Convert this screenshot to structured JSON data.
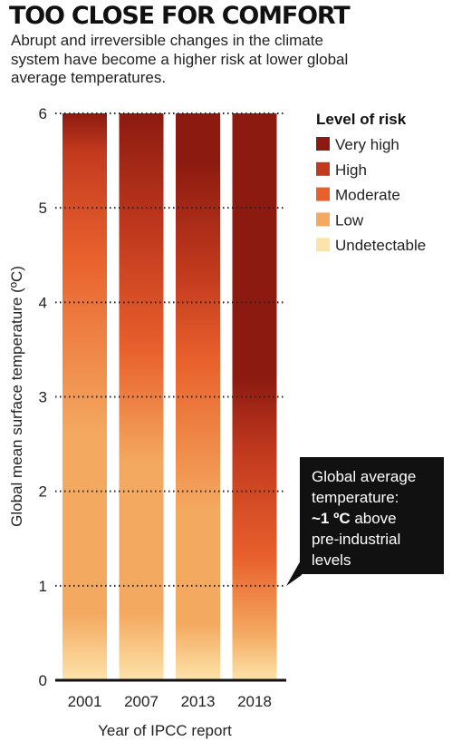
{
  "title": "TOO CLOSE FOR COMFORT",
  "subtitle": "Abrupt and irreversible changes in the climate system have become a higher risk at lower global average temperatures.",
  "colors": {
    "very_high": "#8c1a10",
    "high": "#c23a1e",
    "moderate": "#e8602c",
    "low": "#f4a960",
    "undetectable": "#fde3aa",
    "callout_bg": "#111111"
  },
  "chart_data": {
    "type": "bar",
    "title": "TOO CLOSE FOR COMFORT",
    "xlabel": "Year of IPCC report",
    "ylabel": "Global mean surface temperature (ºC)",
    "ylim": [
      0,
      6
    ],
    "yticks": [
      "0",
      "1",
      "2",
      "3",
      "4",
      "5",
      "6"
    ],
    "categories": [
      "2001",
      "2007",
      "2013",
      "2018"
    ],
    "risk_profiles": [
      {
        "year": "2001",
        "stops": [
          {
            "t": 0,
            "level": "undetectable"
          },
          {
            "t": 0.7,
            "level": "low"
          },
          {
            "t": 2.6,
            "level": "low"
          },
          {
            "t": 4.5,
            "level": "moderate"
          },
          {
            "t": 5.6,
            "level": "high"
          },
          {
            "t": 6,
            "level": "very_high"
          }
        ]
      },
      {
        "year": "2007",
        "stops": [
          {
            "t": 0,
            "level": "undetectable"
          },
          {
            "t": 0.7,
            "level": "low"
          },
          {
            "t": 2.3,
            "level": "low"
          },
          {
            "t": 3.5,
            "level": "moderate"
          },
          {
            "t": 4.7,
            "level": "high"
          },
          {
            "t": 6,
            "level": "very_high"
          }
        ]
      },
      {
        "year": "2013",
        "stops": [
          {
            "t": 0,
            "level": "undetectable"
          },
          {
            "t": 0.6,
            "level": "low"
          },
          {
            "t": 1.8,
            "level": "low"
          },
          {
            "t": 3.4,
            "level": "moderate"
          },
          {
            "t": 4.3,
            "level": "high"
          },
          {
            "t": 5.5,
            "level": "very_high"
          },
          {
            "t": 6,
            "level": "very_high"
          }
        ]
      },
      {
        "year": "2018",
        "stops": [
          {
            "t": 0,
            "level": "undetectable"
          },
          {
            "t": 0.5,
            "level": "low"
          },
          {
            "t": 1.3,
            "level": "moderate"
          },
          {
            "t": 2.4,
            "level": "high"
          },
          {
            "t": 3.2,
            "level": "very_high"
          },
          {
            "t": 6,
            "level": "very_high"
          }
        ]
      }
    ],
    "legend": {
      "title": "Level of risk",
      "placement": "top-right",
      "entries": [
        {
          "key": "very_high",
          "label": "Very high"
        },
        {
          "key": "high",
          "label": "High"
        },
        {
          "key": "moderate",
          "label": "Moderate"
        },
        {
          "key": "low",
          "label": "Low"
        },
        {
          "key": "undetectable",
          "label": "Undetectable"
        }
      ]
    },
    "grid": "dotted horizontal",
    "annotation": {
      "y_value": 1,
      "line1": "Global average",
      "line2": "temperature:",
      "bold": "~1 ºC",
      "line3_rest": " above",
      "line4": "pre-industrial",
      "line5": "levels"
    }
  }
}
